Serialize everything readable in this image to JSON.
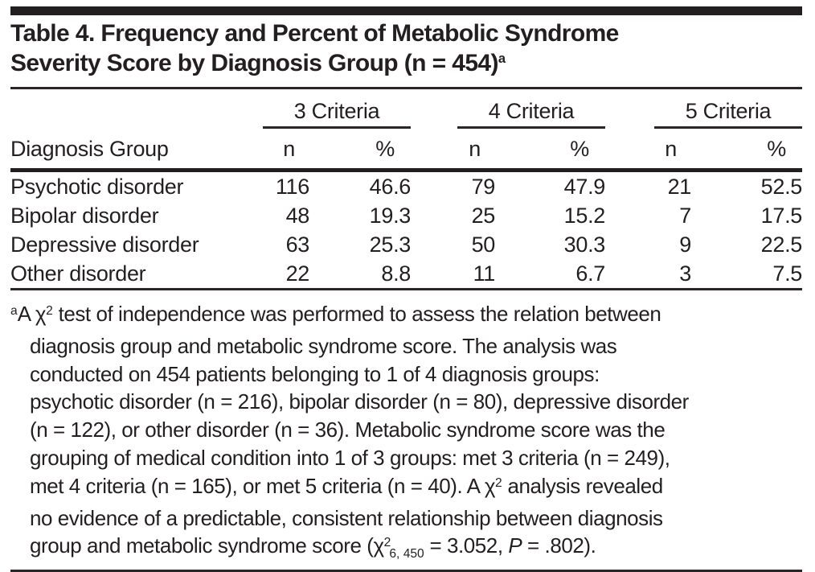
{
  "colors": {
    "text": "#231f20",
    "rules": "#231f20",
    "background": "#ffffff"
  },
  "title": {
    "lines": [
      [
        {
          "t": "Table 4. Frequency and Percent of Metabolic Syndrome",
          "s": "n"
        }
      ],
      [
        {
          "t": "Severity Score by Diagnosis Group (n = 454)",
          "s": "n"
        },
        {
          "t": "a",
          "s": "sup"
        }
      ]
    ]
  },
  "table": {
    "row_header": "Diagnosis Group",
    "group_headers": [
      "3 Criteria",
      "4 Criteria",
      "5 Criteria"
    ],
    "sub_headers": [
      "n",
      "%",
      "n",
      "%",
      "n",
      "%"
    ],
    "rows": [
      {
        "label": "Psychotic disorder",
        "values": [
          "116",
          "46.6",
          "79",
          "47.9",
          "21",
          "52.5"
        ]
      },
      {
        "label": "Bipolar disorder",
        "values": [
          "48",
          "19.3",
          "25",
          "15.2",
          "7",
          "17.5"
        ]
      },
      {
        "label": "Depressive disorder",
        "values": [
          "63",
          "25.3",
          "50",
          "30.3",
          "9",
          "22.5"
        ]
      },
      {
        "label": "Other disorder",
        "values": [
          "22",
          "8.8",
          "11",
          "6.7",
          "3",
          "7.5"
        ]
      }
    ]
  },
  "footnote": {
    "lines": [
      [
        {
          "t": "a",
          "s": "sup"
        },
        {
          "t": "A χ",
          "s": "n"
        },
        {
          "t": "2",
          "s": "sup"
        },
        {
          "t": " test of independence was performed to assess the relation between",
          "s": "n"
        }
      ],
      [
        {
          "t": "diagnosis group and metabolic syndrome score. The analysis was",
          "s": "n"
        }
      ],
      [
        {
          "t": "conducted on 454 patients belonging to 1 of 4 diagnosis groups:",
          "s": "n"
        }
      ],
      [
        {
          "t": "psychotic disorder (n = 216), bipolar disorder (n = 80), depressive disorder",
          "s": "n"
        }
      ],
      [
        {
          "t": "(n = 122), or other disorder (n = 36). Metabolic syndrome score was the",
          "s": "n"
        }
      ],
      [
        {
          "t": "grouping of medical condition into 1 of 3 groups: met 3 criteria (n = 249),",
          "s": "n"
        }
      ],
      [
        {
          "t": "met 4 criteria (n = 165), or met 5 criteria (n = 40). A χ",
          "s": "n"
        },
        {
          "t": "2",
          "s": "sup"
        },
        {
          "t": " analysis revealed",
          "s": "n"
        }
      ],
      [
        {
          "t": "no evidence of a predictable, consistent relationship between diagnosis",
          "s": "n"
        }
      ],
      [
        {
          "t": "group and metabolic syndrome score (χ",
          "s": "n"
        },
        {
          "t": "2",
          "s": "sup"
        },
        {
          "t": "6, 450",
          "s": "sub"
        },
        {
          "t": " = 3.052, ",
          "s": "n"
        },
        {
          "t": "P",
          "s": "i"
        },
        {
          "t": " = .802).",
          "s": "n"
        }
      ]
    ]
  }
}
